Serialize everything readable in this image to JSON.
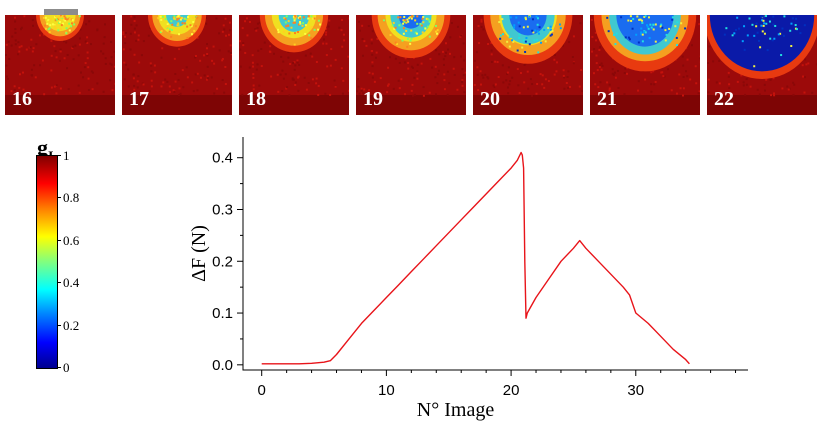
{
  "panels": [
    {
      "label": "16",
      "stage": 0.0
    },
    {
      "label": "17",
      "stage": 0.15
    },
    {
      "label": "18",
      "stage": 0.3
    },
    {
      "label": "19",
      "stage": 0.45
    },
    {
      "label": "20",
      "stage": 0.6
    },
    {
      "label": "21",
      "stage": 0.8
    },
    {
      "label": "22",
      "stage": 1.0
    }
  ],
  "colorbar": {
    "title": "g",
    "subscript": "I",
    "ticks": [
      "1",
      "0.8",
      "0.6",
      "0.4",
      "0.2",
      "0"
    ],
    "tick_values": [
      1,
      0.8,
      0.6,
      0.4,
      0.2,
      0
    ]
  },
  "chart_data": {
    "type": "line",
    "title": "",
    "xlabel": "N° Image",
    "ylabel": "ΔF (N)",
    "xlim": [
      -1.5,
      39
    ],
    "ylim": [
      -0.01,
      0.44
    ],
    "xticks": [
      0,
      10,
      20,
      30
    ],
    "yticks": [
      0.0,
      0.1,
      0.2,
      0.3,
      0.4
    ],
    "ytick_labels": [
      "0.0",
      "0.1",
      "0.2",
      "0.3",
      "0.4"
    ],
    "color": "#e8141a",
    "series": [
      {
        "name": "ΔF",
        "x": [
          0,
          1,
          2,
          3,
          4,
          5,
          5.5,
          6,
          7,
          8,
          9,
          10,
          11,
          12,
          13,
          14,
          15,
          16,
          17,
          18,
          19,
          20,
          20.5,
          20.8,
          20.9,
          21.0,
          21.1,
          21.2,
          21.3,
          22,
          23,
          24,
          25,
          25.5,
          26,
          27,
          28,
          29,
          29.5,
          30,
          31,
          32,
          33,
          34,
          34.3
        ],
        "y": [
          0.002,
          0.002,
          0.002,
          0.002,
          0.003,
          0.005,
          0.008,
          0.02,
          0.05,
          0.08,
          0.105,
          0.13,
          0.155,
          0.18,
          0.205,
          0.23,
          0.255,
          0.28,
          0.305,
          0.33,
          0.355,
          0.38,
          0.395,
          0.41,
          0.405,
          0.38,
          0.2,
          0.09,
          0.1,
          0.13,
          0.165,
          0.2,
          0.225,
          0.24,
          0.225,
          0.2,
          0.175,
          0.15,
          0.135,
          0.1,
          0.08,
          0.055,
          0.03,
          0.01,
          0.002
        ]
      }
    ]
  }
}
